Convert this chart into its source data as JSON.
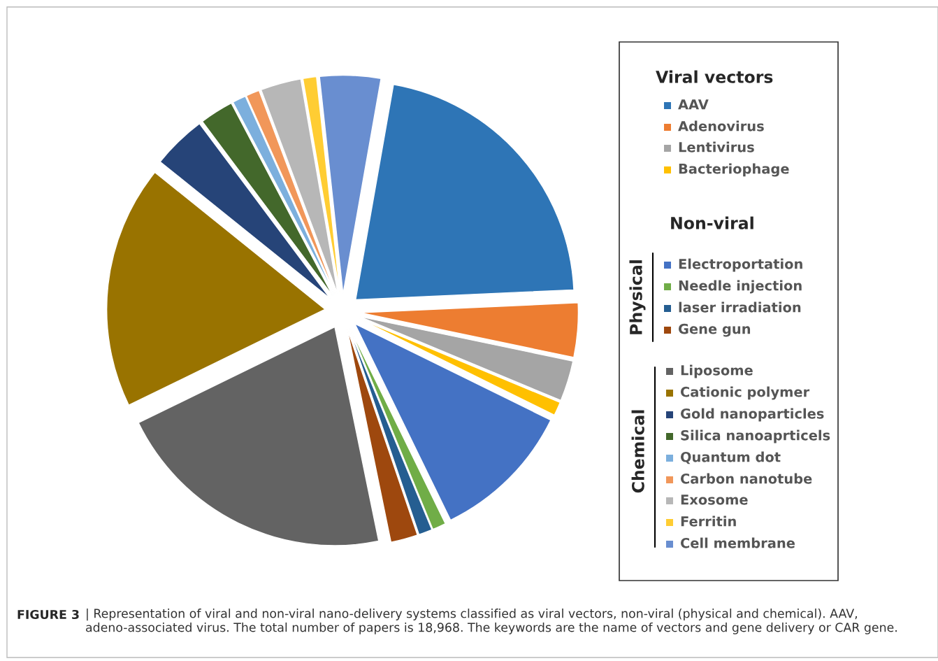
{
  "chart_data": {
    "type": "pie",
    "title": "FIGURE 3",
    "categories": [
      "AAV",
      "Adenovirus",
      "Lentivirus",
      "Bacteriophage",
      "Electroportation",
      "Needle injection",
      "laser irradiation",
      "Gene gun",
      "Liposome",
      "Cationic polymer",
      "Gold nanoparticles",
      "Silica nanoaprticels",
      "Quantum dot",
      "Carbon nanotube",
      "Exosome",
      "Ferritin",
      "Cell membrane"
    ],
    "values": [
      21.5,
      4,
      3,
      1,
      10.5,
      1,
      1,
      2,
      21,
      18,
      4,
      2.5,
      1,
      1,
      3,
      1,
      4.5
    ],
    "colors": [
      "#2e75b6",
      "#ed7d31",
      "#a5a5a5",
      "#ffc000",
      "#4472c4",
      "#70ad47",
      "#255e91",
      "#9e480e",
      "#636363",
      "#997300",
      "#264478",
      "#43682b",
      "#7cafdd",
      "#f1975a",
      "#b7b7b7",
      "#ffcd33",
      "#698ed0"
    ],
    "legend": "right",
    "annotations": [
      "Viral vectors",
      "Non-viral",
      "Physical",
      "Chemical",
      "| Representation of viral and non-viral nano-delivery systems classified as viral vectors, non-viral (physical and chemical). AAV, adeno-associated virus. The total number of papers is 18,968. The keywords are the name of vectors and gene delivery or CAR gene."
    ]
  }
}
